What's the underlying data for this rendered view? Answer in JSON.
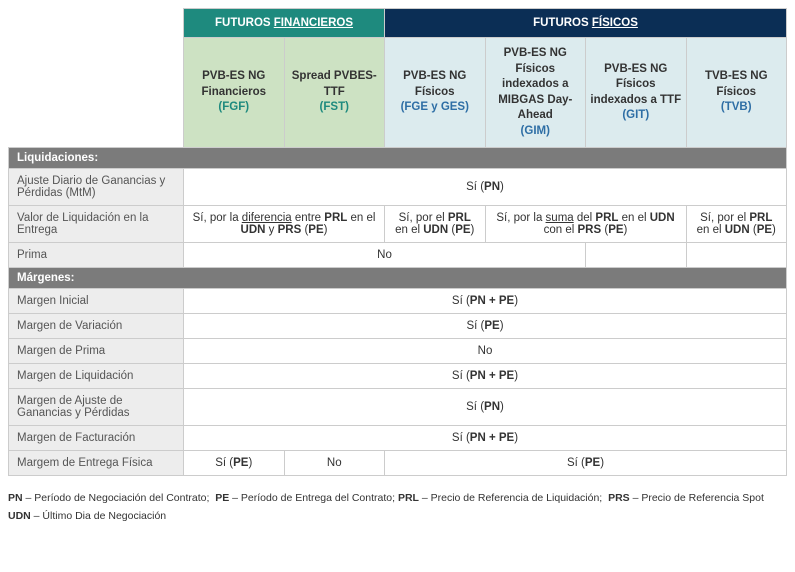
{
  "colors": {
    "fin_header_bg": "#1e8a7e",
    "phys_header_bg": "#0b2e55",
    "fin_sub_bg": "#cde2c3",
    "phys_sub_bg": "#dcebee",
    "fin_code_color": "#1e8a7e",
    "phys_code_color": "#2e6ea5"
  },
  "headers": {
    "fin": "FUTUROS ",
    "fin_u": "FINANCIEROS",
    "phys": "FUTUROS ",
    "phys_u": "FÍSICOS"
  },
  "products": {
    "fgf": {
      "name": "PVB-ES NG Financieros",
      "code": "(FGF)"
    },
    "fst": {
      "name": "Spread PVBES-TTF",
      "code": "(FST)"
    },
    "fge": {
      "name": "PVB-ES NG Físicos",
      "code": "(FGE y GES)"
    },
    "gim": {
      "name": "PVB-ES NG Físicos indexados a MIBGAS Day-Ahead",
      "code": "(GIM)"
    },
    "git": {
      "name": "PVB-ES NG Físicos indexados a TTF",
      "code": "(GIT)"
    },
    "tvb": {
      "name": "TVB-ES NG Físicos",
      "code": "(TVB)"
    }
  },
  "sections": {
    "liq": "Liquidaciones:",
    "mar": "Márgenes:"
  },
  "rows": {
    "mtm": "Ajuste Diario de Ganancias y Pérdidas (MtM)",
    "vle": "Valor de Liquidación en la Entrega",
    "prima": "Prima",
    "mi": "Margen Inicial",
    "mv": "Margen de Variación",
    "mp": "Margen de Prima",
    "ml": "Margen de Liquidación",
    "magp": "Margen de Ajuste de Ganancias y Pérdidas",
    "mf": "Margen de Facturación",
    "mef": "Margem de Entrega Física"
  },
  "values": {
    "si_pn": "Sí (<b>PN</b>)",
    "vle_fin": "Sí, por la <span class='u'>diferencia</span> entre <b>PRL</b> en el <b>UDN</b> y <b>PRS</b> (<b>PE</b>)",
    "vle_fge": "Sí, por el <b>PRL</b> en el <b>UDN</b> (<b>PE</b>)",
    "vle_idx": "Sí, por la <span class='u'>suma</span> del <b>PRL</b> en el <b>UDN</b> con el <b>PRS</b> (<b>PE</b>)",
    "vle_tvb": "Sí, por el <b>PRL</b> en el <b>UDN</b> (<b>PE</b>)",
    "no": "No",
    "si_pnpe": "Sí (<b>PN + PE</b>)",
    "si_pe": "Sí (<b>PE</b>)",
    "mef_fgf": "Sí (<b>PE</b>)",
    "mef_phys": "Sí (<b>PE</b>)",
    "blank": ""
  },
  "legend": {
    "l1": "<b>PN</b> – Período de Negociación del Contrato;&nbsp;&nbsp;<b>PE</b> – Período de Entrega del Contrato;&nbsp;<b>PRL</b> – Precio de Referencia de Liquidación;&nbsp;&nbsp;<b>PRS</b> – Precio de Referencia Spot",
    "l2": "<b>UDN</b> – Último Dia de Negociación"
  }
}
